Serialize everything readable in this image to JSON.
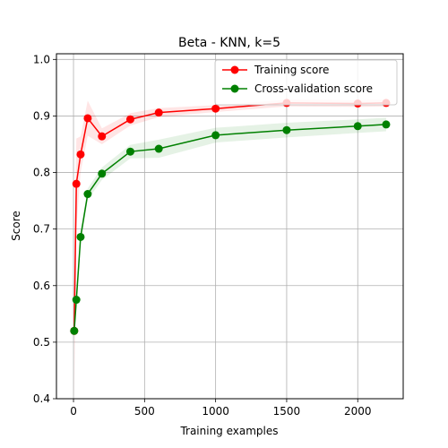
{
  "chart_data": {
    "type": "line",
    "title": "Beta - KNN, k=5",
    "xlabel": "Training examples",
    "ylabel": "Score",
    "xlim": [
      -120,
      2320
    ],
    "ylim": [
      0.4,
      1.01
    ],
    "xticks": [
      0,
      500,
      1000,
      1500,
      2000
    ],
    "yticks": [
      0.4,
      0.5,
      0.6,
      0.7,
      0.8,
      0.9,
      1.0
    ],
    "xtick_labels": [
      "0",
      "500",
      "1000",
      "1500",
      "2000"
    ],
    "ytick_labels": [
      "0.4",
      "0.5",
      "0.6",
      "0.7",
      "0.8",
      "0.9",
      "1.0"
    ],
    "grid": true,
    "legend_position": "top-right",
    "series": [
      {
        "name": "Training score",
        "color": "#ff0000",
        "band_color": "#ff0000",
        "x": [
          5,
          20,
          50,
          100,
          200,
          400,
          600,
          1000,
          1500,
          2000,
          2200
        ],
        "y": [
          0.52,
          0.78,
          0.832,
          0.896,
          0.864,
          0.894,
          0.906,
          0.913,
          0.923,
          0.922,
          0.923
        ],
        "lower": [
          0.4,
          0.7,
          0.8,
          0.865,
          0.85,
          0.883,
          0.898,
          0.907,
          0.917,
          0.916,
          0.917
        ],
        "upper": [
          0.64,
          0.86,
          0.864,
          0.927,
          0.878,
          0.905,
          0.914,
          0.919,
          0.929,
          0.928,
          0.929
        ]
      },
      {
        "name": "Cross-validation score",
        "color": "#008000",
        "band_color": "#008000",
        "x": [
          5,
          20,
          50,
          100,
          200,
          400,
          600,
          1000,
          1500,
          2000,
          2200
        ],
        "y": [
          0.52,
          0.575,
          0.686,
          0.762,
          0.798,
          0.837,
          0.842,
          0.866,
          0.875,
          0.882,
          0.885
        ],
        "lower": [
          0.51,
          0.56,
          0.675,
          0.752,
          0.787,
          0.825,
          0.826,
          0.853,
          0.862,
          0.87,
          0.873
        ],
        "upper": [
          0.53,
          0.59,
          0.697,
          0.772,
          0.809,
          0.849,
          0.858,
          0.879,
          0.888,
          0.894,
          0.897
        ]
      }
    ]
  }
}
